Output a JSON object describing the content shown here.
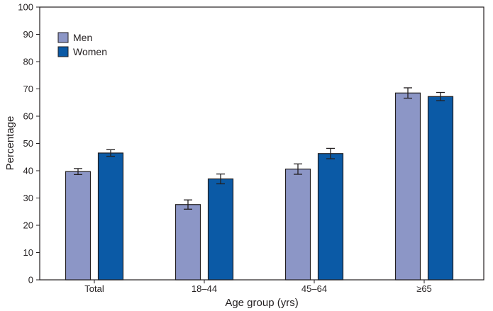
{
  "chart_data": {
    "type": "bar",
    "categories": [
      "Total",
      "18–44",
      "45–64",
      "≥65"
    ],
    "series": [
      {
        "name": "Men",
        "color": "#8c96c6",
        "values": [
          39.7,
          27.6,
          40.6,
          68.5
        ],
        "error_low": [
          38.6,
          25.9,
          38.7,
          66.6
        ],
        "error_high": [
          40.8,
          29.3,
          42.5,
          70.4
        ]
      },
      {
        "name": "Women",
        "color": "#0b5aa6",
        "values": [
          46.5,
          37.0,
          46.3,
          67.2
        ],
        "error_low": [
          45.3,
          35.2,
          44.4,
          65.7
        ],
        "error_high": [
          47.7,
          38.8,
          48.2,
          68.7
        ]
      }
    ],
    "xlabel": "Age group (yrs)",
    "ylabel": "Percentage",
    "ylim": [
      0,
      100
    ],
    "yticks": [
      "0",
      "10",
      "20",
      "30",
      "40",
      "50",
      "60",
      "70",
      "80",
      "90",
      "100"
    ],
    "grid": false,
    "legend_position": "top-left"
  }
}
